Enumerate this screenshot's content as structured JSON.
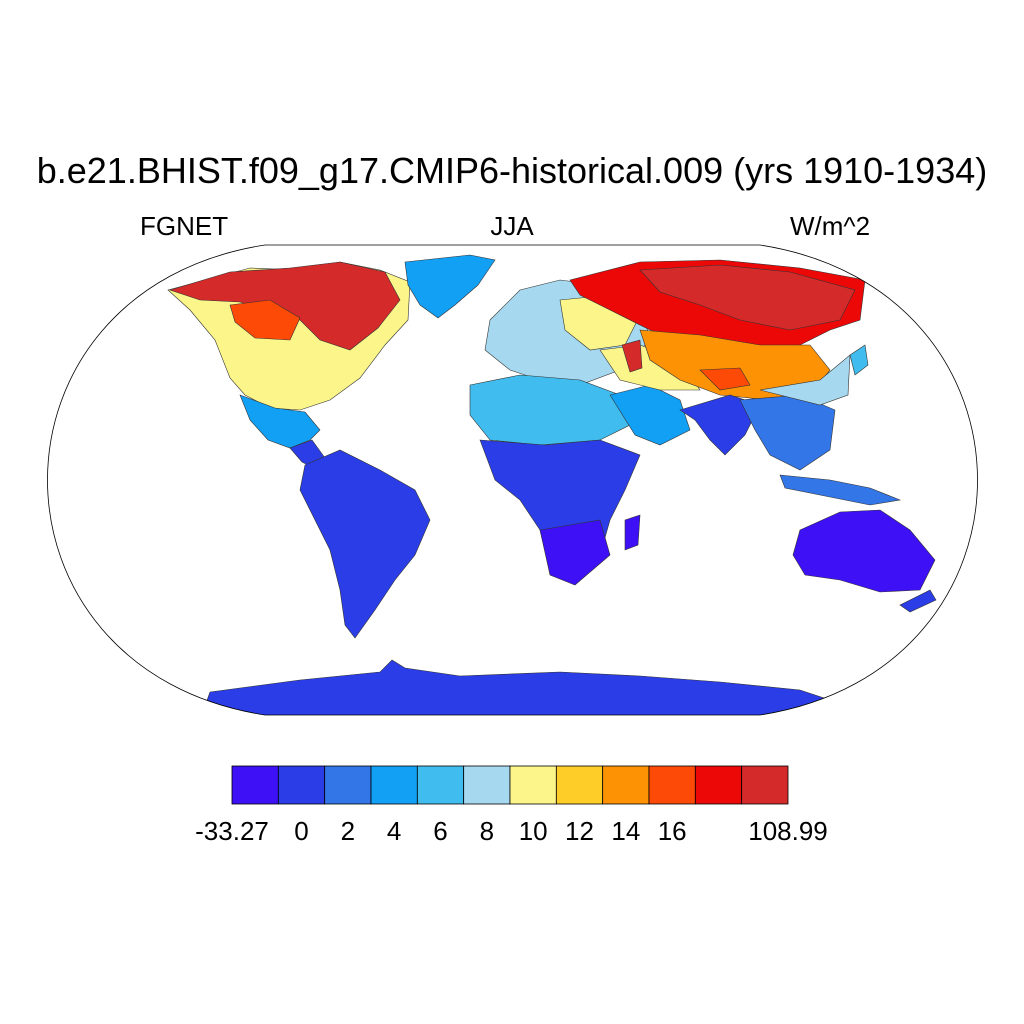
{
  "title": "b.e21.BHIST.f09_g17.CMIP6-historical.009 (yrs 1910-1934)",
  "left_label": "FGNET",
  "center_label": "JJA",
  "right_label": "W/m^2",
  "projection": "Robinson",
  "chart_data": {
    "type": "heatmap",
    "variable": "FGNET",
    "season": "JJA",
    "units": "W/m^2",
    "colorbar": {
      "labels": [
        "-33.27",
        "0",
        "2",
        "4",
        "6",
        "8",
        "10",
        "12",
        "14",
        "16",
        "108.99"
      ],
      "min": -33.27,
      "max": 108.99,
      "boundaries": [
        0,
        2,
        4,
        6,
        8,
        10,
        12,
        14,
        16
      ],
      "colors": [
        "#3d10f5",
        "#2a3de6",
        "#3276e8",
        "#12a0f5",
        "#40bdee",
        "#a6d8ef",
        "#fcf58a",
        "#fecd28",
        "#fe9205",
        "#fd4a07",
        "#ed0808",
        "#d42a2a"
      ]
    },
    "regions": [
      {
        "name": "Antarctica",
        "class": 1
      },
      {
        "name": "South America",
        "class": 0
      },
      {
        "name": "Central Africa",
        "class": 0
      },
      {
        "name": "Southern Africa",
        "class": 0
      },
      {
        "name": "Australia",
        "class": 0
      },
      {
        "name": "India",
        "class": 1
      },
      {
        "name": "Southeast Asia",
        "class": 2
      },
      {
        "name": "Sahara",
        "class": 4
      },
      {
        "name": "Arabia",
        "class": 3
      },
      {
        "name": "Greenland",
        "class": 3
      },
      {
        "name": "Europe",
        "class": 6
      },
      {
        "name": "Northern Canada",
        "class": 11
      },
      {
        "name": "Eastern Siberia",
        "class": 11
      },
      {
        "name": "Central Asia",
        "class": 8
      },
      {
        "name": "Caspian region",
        "class": 11
      },
      {
        "name": "United States",
        "class": 6
      },
      {
        "name": "Mexico",
        "class": 3
      }
    ]
  }
}
